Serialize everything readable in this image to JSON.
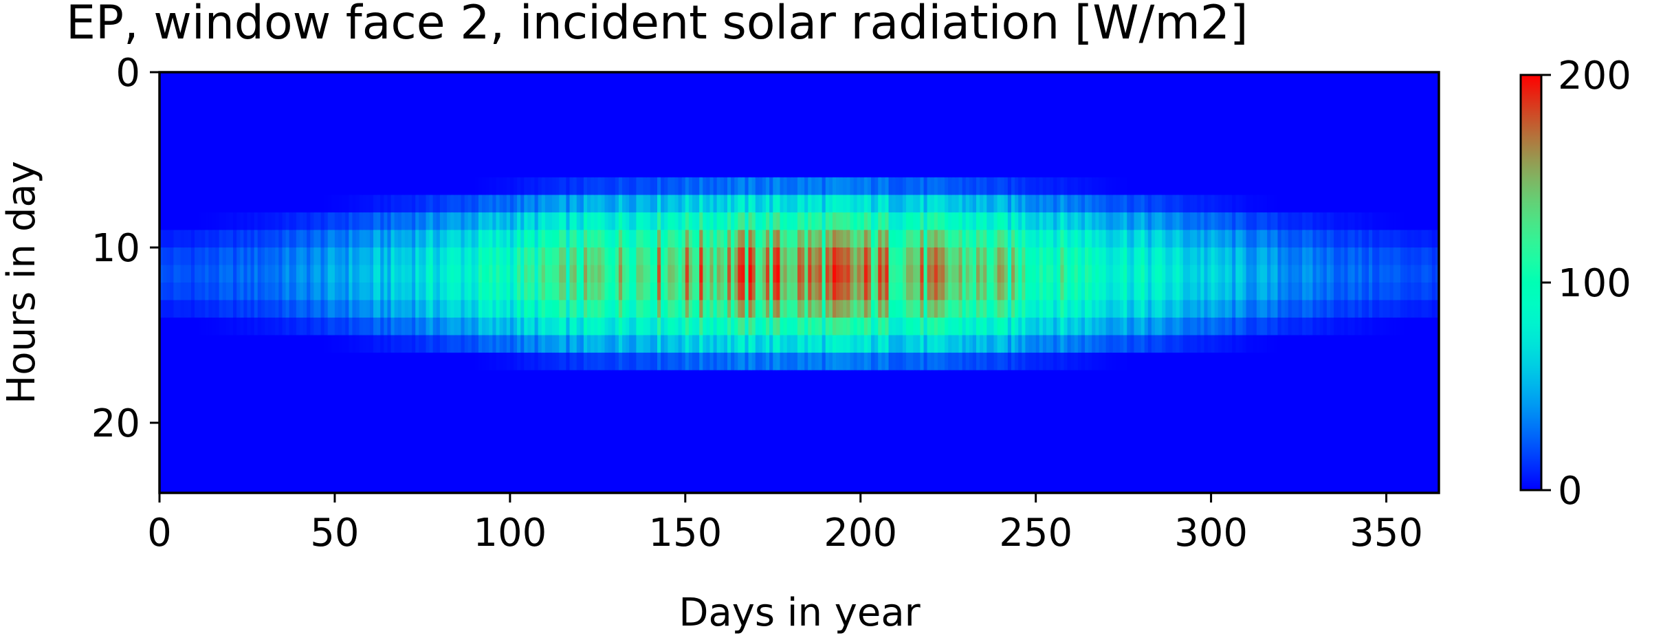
{
  "chart_data": {
    "type": "heatmap",
    "title": "EP, window face 2, incident solar radiation  [W/m2]",
    "xlabel": "Days in year",
    "ylabel": "Hours in day",
    "xlim": [
      0,
      365
    ],
    "ylim": [
      24,
      0
    ],
    "xticks": [
      0,
      50,
      100,
      150,
      200,
      250,
      300,
      350
    ],
    "yticks": [
      0,
      10,
      20
    ],
    "colorbar": {
      "ticks": [
        0,
        100,
        200
      ],
      "range": [
        0,
        200
      ],
      "colormap": "rainbow"
    },
    "grid": false,
    "description_hidden": "Irradiance peaks around hours 10-13 and days 130-250, up to ~200 W/m2; zero at night hours."
  }
}
